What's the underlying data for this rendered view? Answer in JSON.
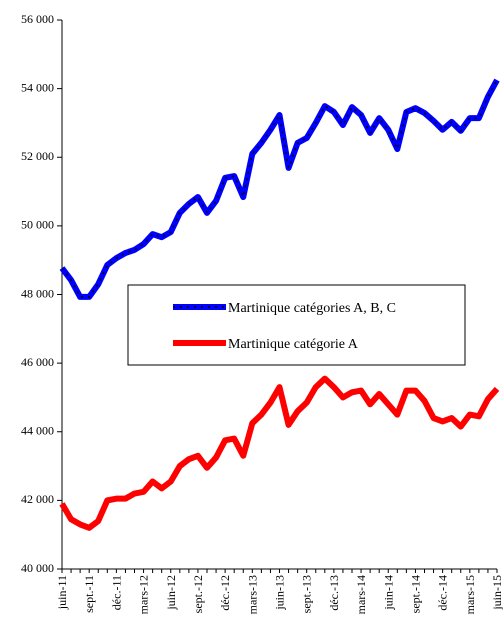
{
  "chart_data": {
    "type": "line",
    "categories": [
      "juin-11",
      null,
      null,
      "sept.-11",
      null,
      null,
      "déc.-11",
      null,
      null,
      "mars-12",
      null,
      null,
      "juin-12",
      null,
      null,
      "sept.-12",
      null,
      null,
      "déc.-12",
      null,
      null,
      "mars-13",
      null,
      null,
      "juin-13",
      null,
      null,
      "sept.-13",
      null,
      null,
      "déc.-13",
      null,
      null,
      "mars-14",
      null,
      null,
      "juin-14",
      null,
      null,
      "sept.-14",
      null,
      null,
      "déc.-14",
      null,
      null,
      "mars-15",
      null,
      null,
      "juin-15"
    ],
    "series": [
      {
        "name": "Martinique catégories A, B, C",
        "color": "#0000ff",
        "values": [
          48770,
          48420,
          47930,
          47930,
          48300,
          48860,
          49060,
          49210,
          49300,
          49470,
          49760,
          49670,
          49820,
          50380,
          50640,
          50840,
          50380,
          50730,
          51400,
          51450,
          50840,
          52100,
          52420,
          52800,
          53230,
          51690,
          52420,
          52560,
          53000,
          53490,
          53320,
          52940,
          53460,
          53230,
          52710,
          53140,
          52800,
          52240,
          53320,
          53430,
          53290,
          53060,
          52800,
          53030,
          52770,
          53140,
          53140,
          53760,
          54250
        ]
      },
      {
        "name": "Martinique catégorie A",
        "color": "#ff0000",
        "values": [
          41900,
          41450,
          41300,
          41200,
          41400,
          42000,
          42050,
          42050,
          42200,
          42250,
          42550,
          42350,
          42550,
          43000,
          43200,
          43300,
          42950,
          43250,
          43750,
          43800,
          43300,
          44250,
          44500,
          44850,
          45300,
          44200,
          44600,
          44850,
          45300,
          45550,
          45300,
          45000,
          45150,
          45200,
          44800,
          45100,
          44800,
          44500,
          45200,
          45200,
          44900,
          44400,
          44300,
          44400,
          44150,
          44500,
          44450,
          44950,
          45250
        ]
      }
    ],
    "ylim": [
      40000,
      56000
    ],
    "yticks": [
      {
        "value": 40000,
        "label": "40 000"
      },
      {
        "value": 42000,
        "label": "42 000"
      },
      {
        "value": 44000,
        "label": "44 000"
      },
      {
        "value": 46000,
        "label": "46 000"
      },
      {
        "value": 48000,
        "label": "48 000"
      },
      {
        "value": 50000,
        "label": "50 000"
      },
      {
        "value": 52000,
        "label": "52 000"
      },
      {
        "value": 54000,
        "label": "54 000"
      },
      {
        "value": 56000,
        "label": "56 000"
      }
    ],
    "legend": "center"
  }
}
